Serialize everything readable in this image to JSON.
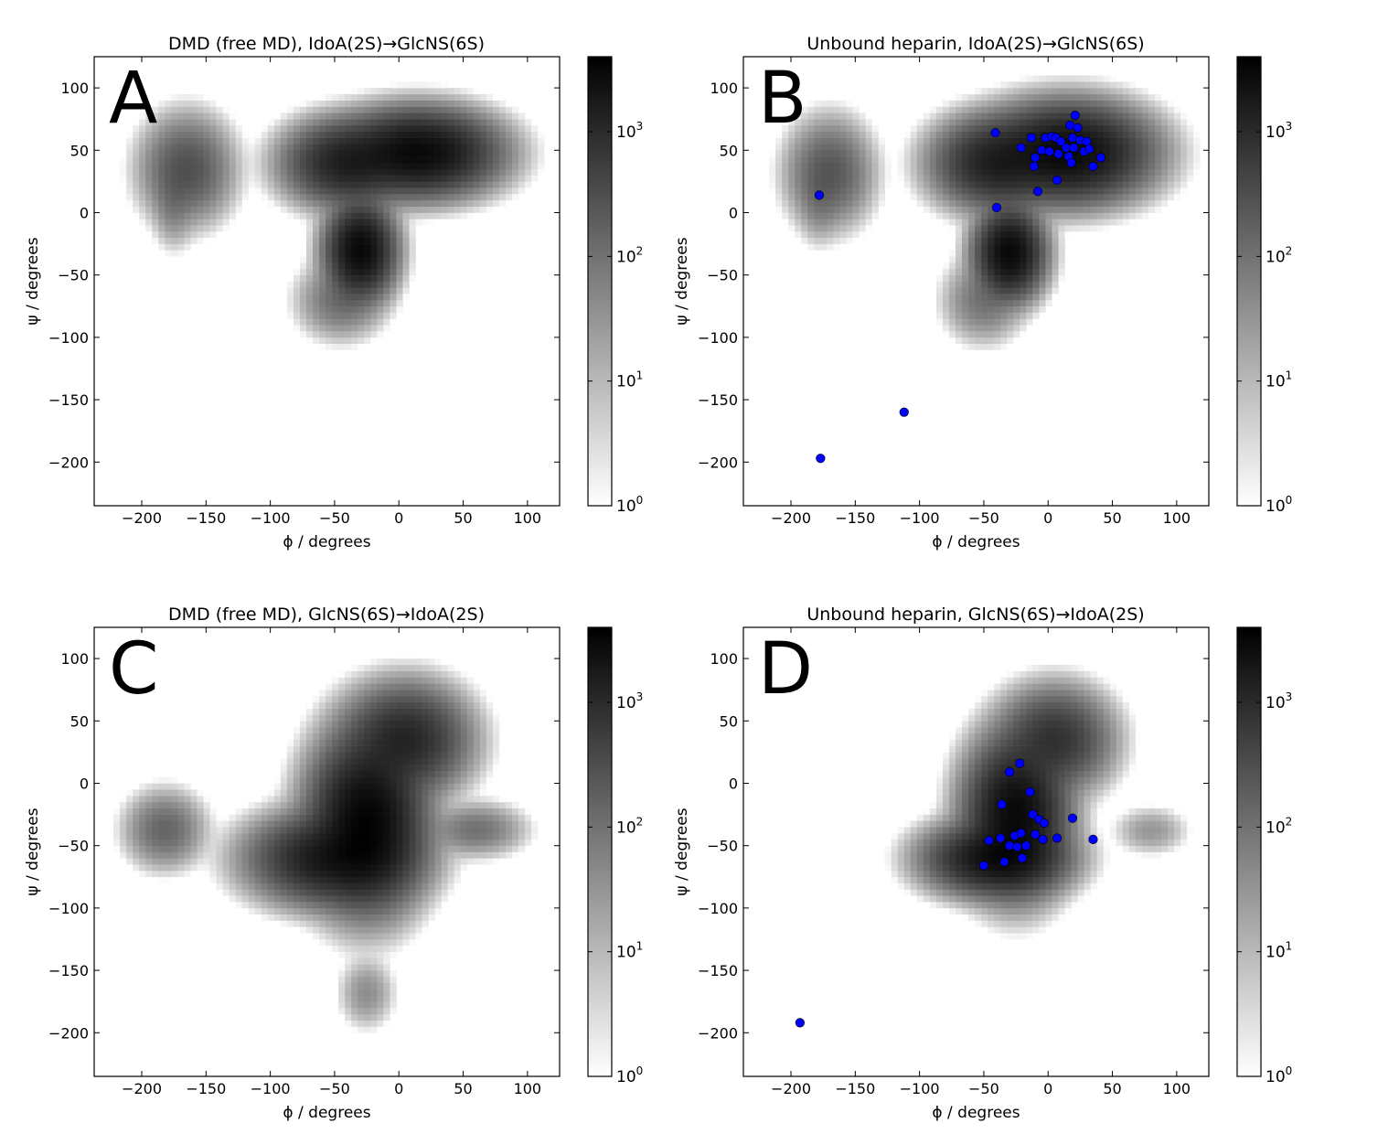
{
  "chart_data": [
    {
      "type": "heatmap",
      "panel_letter": "A",
      "title": "DMD (free MD), IdoA(2S)→GlcNS(6S)",
      "xlabel": "ϕ / degrees",
      "ylabel": "ψ / degrees",
      "xlim": [
        -237,
        125
      ],
      "ylim": [
        -235,
        125
      ],
      "xticks": [
        -200,
        -150,
        -100,
        -50,
        0,
        50,
        100
      ],
      "yticks": [
        -200,
        -150,
        -100,
        -50,
        0,
        50,
        100
      ],
      "colorbar": {
        "scale": "log",
        "vmin": 1,
        "vmax": 4000,
        "tick_values": [
          1,
          10,
          100,
          1000
        ],
        "tick_labels": [
          "10",
          "10",
          "10",
          "10"
        ],
        "tick_exponents": [
          "0",
          "1",
          "2",
          "3"
        ],
        "colors": [
          "#ffffff",
          "#000000"
        ]
      },
      "density_clusters": [
        {
          "phi": -165,
          "psi": 35,
          "sx": 15,
          "sy": 18,
          "peak": 300
        },
        {
          "phi": -175,
          "psi": 8,
          "sx": 7,
          "sy": 15,
          "peak": 60
        },
        {
          "phi": -40,
          "psi": 40,
          "sx": 20,
          "sy": 14,
          "peak": 1500
        },
        {
          "phi": 15,
          "psi": 48,
          "sx": 25,
          "sy": 14,
          "peak": 3000
        },
        {
          "phi": -30,
          "psi": -30,
          "sx": 11,
          "sy": 16,
          "peak": 3000
        },
        {
          "phi": -45,
          "psi": -70,
          "sx": 14,
          "sy": 13,
          "peak": 120
        }
      ],
      "scatter": []
    },
    {
      "type": "heatmap",
      "panel_letter": "B",
      "title": "Unbound heparin, IdoA(2S)→GlcNS(6S)",
      "xlabel": "ϕ / degrees",
      "ylabel": "ψ / degrees",
      "xlim": [
        -237,
        125
      ],
      "ylim": [
        -235,
        125
      ],
      "xticks": [
        -200,
        -150,
        -100,
        -50,
        0,
        50,
        100
      ],
      "yticks": [
        -200,
        -150,
        -100,
        -50,
        0,
        50,
        100
      ],
      "colorbar": {
        "scale": "log",
        "vmin": 1,
        "vmax": 4000,
        "tick_values": [
          1,
          10,
          100,
          1000
        ],
        "tick_labels": [
          "10",
          "10",
          "10",
          "10"
        ],
        "tick_exponents": [
          "0",
          "1",
          "2",
          "3"
        ],
        "colors": [
          "#ffffff",
          "#000000"
        ]
      },
      "density_clusters": [
        {
          "phi": -170,
          "psi": 32,
          "sx": 14,
          "sy": 18,
          "peak": 250
        },
        {
          "phi": -178,
          "psi": 10,
          "sx": 7,
          "sy": 14,
          "peak": 50
        },
        {
          "phi": -40,
          "psi": 40,
          "sx": 20,
          "sy": 15,
          "peak": 1500
        },
        {
          "phi": 15,
          "psi": 48,
          "sx": 26,
          "sy": 16,
          "peak": 3000
        },
        {
          "phi": -30,
          "psi": -32,
          "sx": 11,
          "sy": 15,
          "peak": 3000
        },
        {
          "phi": -50,
          "psi": -70,
          "sx": 13,
          "sy": 14,
          "peak": 100
        }
      ],
      "scatter_color": "#0000ff",
      "scatter": [
        {
          "x": -178,
          "y": 14
        },
        {
          "x": -112,
          "y": -160
        },
        {
          "x": -177,
          "y": -197
        },
        {
          "x": -41,
          "y": 64
        },
        {
          "x": -40,
          "y": 4
        },
        {
          "x": -21,
          "y": 52
        },
        {
          "x": -13,
          "y": 60
        },
        {
          "x": -11,
          "y": 37
        },
        {
          "x": -10,
          "y": 44
        },
        {
          "x": -8,
          "y": 17
        },
        {
          "x": -5,
          "y": 50
        },
        {
          "x": -2,
          "y": 60
        },
        {
          "x": 1,
          "y": 49
        },
        {
          "x": 3,
          "y": 61
        },
        {
          "x": 6,
          "y": 60
        },
        {
          "x": 7,
          "y": 26
        },
        {
          "x": 8,
          "y": 47
        },
        {
          "x": 10,
          "y": 57
        },
        {
          "x": 14,
          "y": 52
        },
        {
          "x": 16,
          "y": 45
        },
        {
          "x": 17,
          "y": 70
        },
        {
          "x": 18,
          "y": 40
        },
        {
          "x": 19,
          "y": 60
        },
        {
          "x": 20,
          "y": 52
        },
        {
          "x": 21,
          "y": 78
        },
        {
          "x": 23,
          "y": 68
        },
        {
          "x": 25,
          "y": 58
        },
        {
          "x": 28,
          "y": 49
        },
        {
          "x": 30,
          "y": 57
        },
        {
          "x": 32,
          "y": 51
        },
        {
          "x": 35,
          "y": 37
        },
        {
          "x": 41,
          "y": 44
        }
      ]
    },
    {
      "type": "heatmap",
      "panel_letter": "C",
      "title": "DMD (free MD), GlcNS(6S)→IdoA(2S)",
      "xlabel": "ϕ / degrees",
      "ylabel": "ψ / degrees",
      "xlim": [
        -237,
        125
      ],
      "ylim": [
        -235,
        125
      ],
      "xticks": [
        -200,
        -150,
        -100,
        -50,
        0,
        50,
        100
      ],
      "yticks": [
        -200,
        -150,
        -100,
        -50,
        0,
        50,
        100
      ],
      "colorbar": {
        "scale": "log",
        "vmin": 1,
        "vmax": 4000,
        "tick_values": [
          1,
          10,
          100,
          1000
        ],
        "tick_labels": [
          "10",
          "10",
          "10",
          "10"
        ],
        "tick_exponents": [
          "0",
          "1",
          "2",
          "3"
        ],
        "colors": [
          "#ffffff",
          "#000000"
        ]
      },
      "density_clusters": [
        {
          "phi": -182,
          "psi": -37,
          "sx": 13,
          "sy": 13,
          "peak": 150
        },
        {
          "phi": -50,
          "psi": -60,
          "sx": 26,
          "sy": 15,
          "peak": 2000
        },
        {
          "phi": -25,
          "psi": -30,
          "sx": 18,
          "sy": 28,
          "peak": 3500
        },
        {
          "phi": 5,
          "psi": 35,
          "sx": 20,
          "sy": 18,
          "peak": 1200
        },
        {
          "phi": 60,
          "psi": -37,
          "sx": 16,
          "sy": 9,
          "peak": 100
        },
        {
          "phi": -25,
          "psi": -168,
          "sx": 9,
          "sy": 12,
          "peak": 40
        }
      ],
      "scatter": []
    },
    {
      "type": "heatmap",
      "panel_letter": "D",
      "title": "Unbound heparin, GlcNS(6S)→IdoA(2S)",
      "xlabel": "ϕ / degrees",
      "ylabel": "ψ / degrees",
      "xlim": [
        -237,
        125
      ],
      "ylim": [
        -235,
        125
      ],
      "xticks": [
        -200,
        -150,
        -100,
        -50,
        0,
        50,
        100
      ],
      "yticks": [
        -200,
        -150,
        -100,
        -50,
        0,
        50,
        100
      ],
      "colorbar": {
        "scale": "log",
        "vmin": 1,
        "vmax": 4000,
        "tick_values": [
          1,
          10,
          100,
          1000
        ],
        "tick_labels": [
          "10",
          "10",
          "10",
          "10"
        ],
        "tick_exponents": [
          "0",
          "1",
          "2",
          "3"
        ],
        "colors": [
          "#ffffff",
          "#000000"
        ]
      },
      "density_clusters": [
        {
          "phi": -40,
          "psi": -60,
          "sx": 22,
          "sy": 12,
          "peak": 2500
        },
        {
          "phi": -25,
          "psi": -25,
          "sx": 16,
          "sy": 25,
          "peak": 3000
        },
        {
          "phi": 5,
          "psi": 35,
          "sx": 18,
          "sy": 17,
          "peak": 800
        },
        {
          "phi": 80,
          "psi": -38,
          "sx": 12,
          "sy": 8,
          "peak": 30
        }
      ],
      "scatter_color": "#0000ff",
      "scatter": [
        {
          "x": -193,
          "y": -192
        },
        {
          "x": -50,
          "y": -66
        },
        {
          "x": -46,
          "y": -46
        },
        {
          "x": -37,
          "y": -44
        },
        {
          "x": -36,
          "y": -17
        },
        {
          "x": -34,
          "y": -63
        },
        {
          "x": -30,
          "y": -50
        },
        {
          "x": -30,
          "y": 9
        },
        {
          "x": -26,
          "y": -42
        },
        {
          "x": -24,
          "y": -51
        },
        {
          "x": -22,
          "y": 16
        },
        {
          "x": -21,
          "y": -40
        },
        {
          "x": -20,
          "y": -60
        },
        {
          "x": -17,
          "y": -50
        },
        {
          "x": -14,
          "y": -7
        },
        {
          "x": -12,
          "y": -25
        },
        {
          "x": -10,
          "y": -41
        },
        {
          "x": -7,
          "y": -29
        },
        {
          "x": -4,
          "y": -45
        },
        {
          "x": -3,
          "y": -32
        },
        {
          "x": 7,
          "y": -44
        },
        {
          "x": 19,
          "y": -28
        },
        {
          "x": 35,
          "y": -45
        }
      ]
    }
  ]
}
